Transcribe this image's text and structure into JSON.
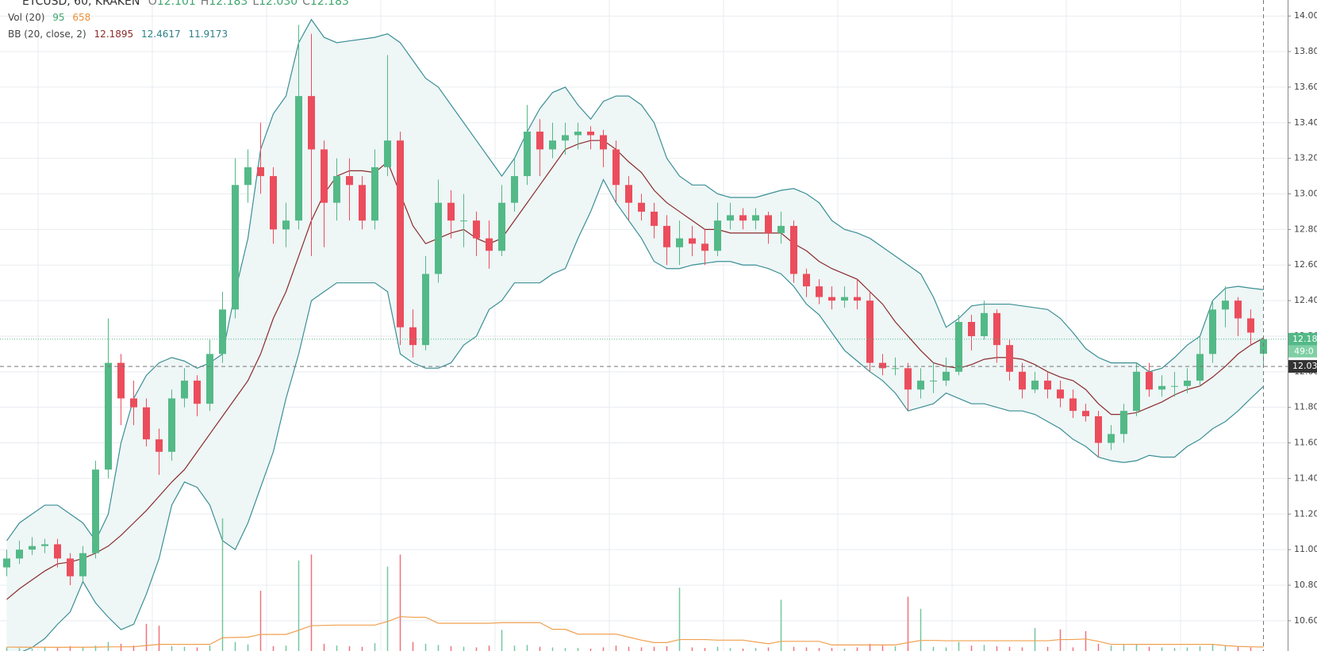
{
  "chart_data": {
    "type": "candlestick",
    "symbol": "ETCUSD, 60, KRAKEN",
    "ohlc_legend": [
      {
        "key": "O",
        "text": "12.101"
      },
      {
        "key": "H",
        "text": "12.183"
      },
      {
        "key": "L",
        "text": "12.030"
      },
      {
        "key": "C",
        "text": "12.183"
      }
    ],
    "volume_legend": {
      "name": "Vol (20)",
      "volume": "95",
      "ma": "658"
    },
    "bb_legend": {
      "name": "BB (20, close, 2)",
      "basis": "12.1895",
      "upper": "12.4617",
      "lower": "11.9173"
    },
    "open": [
      10.9,
      10.95,
      11.0,
      11.02,
      11.03,
      10.95,
      10.85,
      10.98,
      11.45,
      12.05,
      11.85,
      11.8,
      11.62,
      11.55,
      11.85,
      11.95,
      11.82,
      12.1,
      12.35,
      13.05,
      13.15,
      13.1,
      12.8,
      12.85,
      13.55,
      13.25,
      12.95,
      13.1,
      13.05,
      12.85,
      13.15,
      13.3,
      12.25,
      12.15,
      12.55,
      12.95,
      12.85,
      12.85,
      12.75,
      12.68,
      12.95,
      13.1,
      13.35,
      13.25,
      13.3,
      13.33,
      13.35,
      13.33,
      13.25,
      13.05,
      12.95,
      12.9,
      12.82,
      12.7,
      12.75,
      12.72,
      12.68,
      12.85,
      12.88,
      12.85,
      12.88,
      12.78,
      12.82,
      12.55,
      12.48,
      12.42,
      12.4,
      12.42,
      12.4,
      12.05,
      12.02,
      12.02,
      11.9,
      11.95,
      11.95,
      12.0,
      12.28,
      12.2,
      12.33,
      12.15,
      12.0,
      11.9,
      11.95,
      11.9,
      11.85,
      11.78,
      11.75,
      11.6,
      11.65,
      11.78,
      12.0,
      11.9,
      11.92,
      11.92,
      11.95,
      12.1,
      12.35,
      12.4,
      12.3,
      12.101
    ],
    "high": [
      11.0,
      11.05,
      11.07,
      11.06,
      11.06,
      10.98,
      11.02,
      11.5,
      12.3,
      12.1,
      11.95,
      11.85,
      11.68,
      11.9,
      12.02,
      11.98,
      12.18,
      12.45,
      13.2,
      13.25,
      13.4,
      13.15,
      12.95,
      13.95,
      13.9,
      13.3,
      13.2,
      13.2,
      13.1,
      13.25,
      13.78,
      13.35,
      12.35,
      12.65,
      13.08,
      13.02,
      13.0,
      12.9,
      12.85,
      13.05,
      13.2,
      13.5,
      13.42,
      13.4,
      13.4,
      13.4,
      13.38,
      13.36,
      13.3,
      13.1,
      13.0,
      12.95,
      12.88,
      12.85,
      12.82,
      12.8,
      12.95,
      12.95,
      12.92,
      12.92,
      12.9,
      12.9,
      12.85,
      12.58,
      12.52,
      12.48,
      12.48,
      12.52,
      12.45,
      12.1,
      12.08,
      12.05,
      12.02,
      12.05,
      12.08,
      12.32,
      12.32,
      12.4,
      12.35,
      12.18,
      12.05,
      12.0,
      12.0,
      11.95,
      11.9,
      11.82,
      11.78,
      11.7,
      11.82,
      12.05,
      12.05,
      11.98,
      12.0,
      12.02,
      12.2,
      12.4,
      12.48,
      12.42,
      12.35,
      12.183
    ],
    "low": [
      10.85,
      10.92,
      10.97,
      10.98,
      10.9,
      10.8,
      10.82,
      10.95,
      11.4,
      11.7,
      11.7,
      11.58,
      11.42,
      11.5,
      11.8,
      11.75,
      11.78,
      12.05,
      12.3,
      12.95,
      13.0,
      12.72,
      12.7,
      12.8,
      12.65,
      12.7,
      12.85,
      12.85,
      12.8,
      12.8,
      13.1,
      12.15,
      12.08,
      12.12,
      12.5,
      12.75,
      12.7,
      12.65,
      12.58,
      12.65,
      12.9,
      13.05,
      13.1,
      13.2,
      13.22,
      13.25,
      13.25,
      13.15,
      12.95,
      12.85,
      12.85,
      12.75,
      12.6,
      12.6,
      12.65,
      12.6,
      12.65,
      12.8,
      12.8,
      12.8,
      12.72,
      12.72,
      12.5,
      12.42,
      12.38,
      12.35,
      12.36,
      12.35,
      12.0,
      11.98,
      11.98,
      11.78,
      11.85,
      11.88,
      11.92,
      11.98,
      12.12,
      12.18,
      12.05,
      11.95,
      11.85,
      11.88,
      11.85,
      11.8,
      11.74,
      11.72,
      11.52,
      11.56,
      11.6,
      11.75,
      11.86,
      11.86,
      11.86,
      11.88,
      11.92,
      12.05,
      12.25,
      12.2,
      12.15,
      12.03
    ],
    "close": [
      10.95,
      11.0,
      11.02,
      11.03,
      10.95,
      10.85,
      10.98,
      11.45,
      12.05,
      11.85,
      11.8,
      11.62,
      11.55,
      11.85,
      11.95,
      11.82,
      12.1,
      12.35,
      13.05,
      13.15,
      13.1,
      12.8,
      12.85,
      13.55,
      13.25,
      12.95,
      13.1,
      13.05,
      12.85,
      13.15,
      13.3,
      12.25,
      12.15,
      12.55,
      12.95,
      12.85,
      12.85,
      12.75,
      12.68,
      12.95,
      13.1,
      13.35,
      13.25,
      13.3,
      13.33,
      13.35,
      13.33,
      13.25,
      13.05,
      12.95,
      12.9,
      12.82,
      12.7,
      12.75,
      12.72,
      12.68,
      12.85,
      12.88,
      12.85,
      12.88,
      12.78,
      12.82,
      12.55,
      12.48,
      12.42,
      12.4,
      12.42,
      12.4,
      12.05,
      12.02,
      12.02,
      11.9,
      11.95,
      11.95,
      12.0,
      12.28,
      12.2,
      12.33,
      12.15,
      12.0,
      11.9,
      11.95,
      11.9,
      11.85,
      11.78,
      11.75,
      11.6,
      11.65,
      11.78,
      12.0,
      11.9,
      11.92,
      11.92,
      11.95,
      12.1,
      12.35,
      12.4,
      12.3,
      12.22,
      12.183
    ],
    "bb": {
      "upper": [
        11.05,
        11.15,
        11.2,
        11.25,
        11.25,
        11.2,
        11.15,
        11.05,
        11.2,
        11.6,
        11.85,
        11.98,
        12.05,
        12.08,
        12.06,
        12.02,
        12.05,
        12.1,
        12.45,
        12.75,
        13.25,
        13.45,
        13.55,
        13.85,
        13.98,
        13.88,
        13.85,
        13.86,
        13.87,
        13.88,
        13.9,
        13.85,
        13.75,
        13.65,
        13.6,
        13.5,
        13.4,
        13.3,
        13.2,
        13.1,
        13.2,
        13.35,
        13.48,
        13.57,
        13.6,
        13.5,
        13.42,
        13.52,
        13.55,
        13.55,
        13.5,
        13.4,
        13.2,
        13.1,
        13.05,
        13.05,
        13.0,
        12.98,
        12.98,
        12.98,
        13.0,
        13.02,
        13.03,
        13.0,
        12.95,
        12.85,
        12.8,
        12.78,
        12.75,
        12.7,
        12.65,
        12.6,
        12.55,
        12.42,
        12.25,
        12.3,
        12.37,
        12.38,
        12.38,
        12.38,
        12.37,
        12.36,
        12.35,
        12.3,
        12.22,
        12.13,
        12.08,
        12.05,
        12.05,
        12.05,
        12.0,
        12.02,
        12.08,
        12.15,
        12.2,
        12.4,
        12.47,
        12.48,
        12.47,
        12.4617
      ],
      "middle": [
        10.72,
        10.78,
        10.83,
        10.88,
        10.92,
        10.93,
        10.95,
        10.98,
        11.02,
        11.08,
        11.15,
        11.22,
        11.3,
        11.38,
        11.45,
        11.55,
        11.65,
        11.75,
        11.85,
        11.95,
        12.1,
        12.3,
        12.45,
        12.65,
        12.85,
        13.0,
        13.1,
        13.13,
        13.13,
        13.12,
        13.18,
        13.0,
        12.82,
        12.72,
        12.75,
        12.78,
        12.8,
        12.75,
        12.72,
        12.75,
        12.85,
        12.95,
        13.05,
        13.15,
        13.25,
        13.28,
        13.3,
        13.3,
        13.25,
        13.18,
        13.12,
        13.02,
        12.95,
        12.9,
        12.85,
        12.8,
        12.8,
        12.78,
        12.78,
        12.78,
        12.78,
        12.78,
        12.72,
        12.68,
        12.62,
        12.58,
        12.55,
        12.52,
        12.45,
        12.38,
        12.28,
        12.2,
        12.12,
        12.05,
        12.03,
        12.02,
        12.04,
        12.07,
        12.08,
        12.08,
        12.07,
        12.04,
        12.0,
        11.97,
        11.95,
        11.9,
        11.82,
        11.76,
        11.76,
        11.77,
        11.8,
        11.83,
        11.87,
        11.9,
        11.92,
        11.97,
        12.03,
        12.1,
        12.15,
        12.1895
      ],
      "lower": [
        10.4,
        10.42,
        10.45,
        10.5,
        10.58,
        10.65,
        10.82,
        10.7,
        10.62,
        10.55,
        10.58,
        10.75,
        10.95,
        11.25,
        11.38,
        11.35,
        11.25,
        11.05,
        11.0,
        11.15,
        11.35,
        11.55,
        11.85,
        12.1,
        12.4,
        12.45,
        12.5,
        12.5,
        12.5,
        12.5,
        12.45,
        12.1,
        12.05,
        12.02,
        12.02,
        12.05,
        12.15,
        12.2,
        12.35,
        12.4,
        12.5,
        12.5,
        12.5,
        12.55,
        12.58,
        12.75,
        12.9,
        13.08,
        12.95,
        12.85,
        12.75,
        12.62,
        12.58,
        12.58,
        12.6,
        12.61,
        12.62,
        12.62,
        12.6,
        12.6,
        12.58,
        12.55,
        12.48,
        12.38,
        12.32,
        12.22,
        12.12,
        12.06,
        12.0,
        11.95,
        11.88,
        11.78,
        11.8,
        11.82,
        11.88,
        11.85,
        11.82,
        11.82,
        11.8,
        11.78,
        11.78,
        11.76,
        11.72,
        11.68,
        11.62,
        11.58,
        11.52,
        11.5,
        11.49,
        11.5,
        11.53,
        11.52,
        11.52,
        11.58,
        11.62,
        11.68,
        11.72,
        11.78,
        11.85,
        11.9173
      ]
    },
    "volume": [
      600,
      500,
      400,
      700,
      500,
      800,
      600,
      900,
      1500,
      1200,
      900,
      4500,
      4200,
      800,
      700,
      600,
      900,
      22000,
      1500,
      1100,
      10000,
      800,
      900,
      15000,
      16000,
      1200,
      900,
      800,
      700,
      1300,
      14000,
      16000,
      1500,
      1200,
      1000,
      800,
      700,
      600,
      900,
      3500,
      900,
      1000,
      700,
      600,
      500,
      500,
      400,
      600,
      900,
      700,
      600,
      700,
      800,
      10500,
      600,
      500,
      700,
      500,
      400,
      500,
      600,
      8500,
      700,
      600,
      500,
      500,
      400,
      600,
      1200,
      900,
      800,
      9000,
      7000,
      700,
      600,
      1500,
      900,
      1000,
      800,
      700,
      600,
      3800,
      700,
      3600,
      600,
      3300,
      1200,
      900,
      1000,
      1100,
      700,
      600,
      500,
      600,
      800,
      1100,
      900,
      700,
      600,
      95
    ],
    "volume_ma": [
      650,
      640,
      620,
      620,
      610,
      620,
      620,
      640,
      680,
      700,
      700,
      900,
      1100,
      1100,
      1100,
      1100,
      1100,
      2200,
      2250,
      2300,
      2750,
      2750,
      2750,
      3450,
      4200,
      4250,
      4300,
      4300,
      4300,
      4300,
      4900,
      5700,
      5600,
      5600,
      4600,
      4600,
      4600,
      4600,
      4600,
      4700,
      4700,
      4700,
      4700,
      3600,
      3600,
      2800,
      2800,
      2800,
      2800,
      2300,
      1800,
      1400,
      1400,
      1900,
      1900,
      1900,
      1800,
      1800,
      1800,
      1500,
      1200,
      1600,
      1600,
      1600,
      1600,
      1000,
      1000,
      1000,
      1000,
      1000,
      1000,
      1400,
      1750,
      1750,
      1700,
      1700,
      1700,
      1700,
      1700,
      1700,
      1700,
      1700,
      1700,
      1900,
      1900,
      2000,
      1600,
      1100,
      1100,
      1100,
      1100,
      1100,
      1100,
      1100,
      1100,
      1100,
      900,
      760,
      700,
      658
    ],
    "volume_ylim": [
      0,
      108000
    ],
    "ylim": [
      10.43,
      14.09
    ],
    "yticks": [
      {
        "value": 10.6,
        "label": "10.60"
      },
      {
        "value": 10.8,
        "label": "10.80"
      },
      {
        "value": 11.0,
        "label": "11.00"
      },
      {
        "value": 11.2,
        "label": "11.20"
      },
      {
        "value": 11.4,
        "label": "11.40"
      },
      {
        "value": 11.6,
        "label": "11.60"
      },
      {
        "value": 11.8,
        "label": "11.80"
      },
      {
        "value": 12.0,
        "label": "12.00"
      },
      {
        "value": 12.2,
        "label": "12.20"
      },
      {
        "value": 12.4,
        "label": "12.40"
      },
      {
        "value": 12.6,
        "label": "12.60"
      },
      {
        "value": 12.8,
        "label": "12.80"
      },
      {
        "value": 13.0,
        "label": "13.00"
      },
      {
        "value": 13.2,
        "label": "13.20"
      },
      {
        "value": 13.4,
        "label": "13.40"
      },
      {
        "value": 13.6,
        "label": "13.60"
      },
      {
        "value": 13.8,
        "label": "13.80"
      },
      {
        "value": 14.0,
        "label": "14.00"
      }
    ],
    "grid": true,
    "last_price": 12.183,
    "countdown": "49:0",
    "crosshair_price": 12.03,
    "colors": {
      "up": "#53b987",
      "down": "#eb4d5c",
      "band": "#3b8f95",
      "basis": "#8b2b2b",
      "band_fill": "#eef6f6",
      "volume_ma": "#f0a050",
      "grid": "#e8ebef"
    }
  }
}
